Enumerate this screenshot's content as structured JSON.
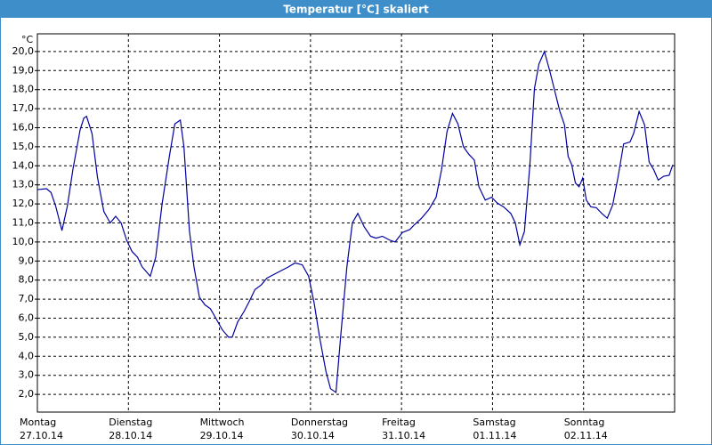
{
  "chart_data": {
    "type": "line",
    "title": "Temperatur [°C] skaliert",
    "y_label": "°C",
    "color": "#0000a0",
    "grid": true,
    "xlim": [
      0,
      7
    ],
    "xticks": [
      {
        "value": 0,
        "label": [
          "Montag",
          "27.10.14"
        ]
      },
      {
        "value": 1,
        "label": [
          "Dienstag",
          "28.10.14"
        ]
      },
      {
        "value": 2,
        "label": [
          "Mittwoch",
          "29.10.14"
        ]
      },
      {
        "value": 3,
        "label": [
          "Donnerstag",
          "30.10.14"
        ]
      },
      {
        "value": 4,
        "label": [
          "Freitag",
          "31.10.14"
        ]
      },
      {
        "value": 5,
        "label": [
          "Samstag",
          "01.11.14"
        ]
      },
      {
        "value": 6,
        "label": [
          "Sonntag",
          "02.11.14"
        ]
      }
    ],
    "ylim": [
      1.07,
      20.93
    ],
    "yticks": [
      {
        "value": 2,
        "label": "2,0"
      },
      {
        "value": 3,
        "label": "3,0"
      },
      {
        "value": 4,
        "label": "4,0"
      },
      {
        "value": 5,
        "label": "5,0"
      },
      {
        "value": 6,
        "label": "6,0"
      },
      {
        "value": 7,
        "label": "7,0"
      },
      {
        "value": 8,
        "label": "8,0"
      },
      {
        "value": 9,
        "label": "9,0"
      },
      {
        "value": 10,
        "label": "10,0"
      },
      {
        "value": 11,
        "label": "11,0"
      },
      {
        "value": 12,
        "label": "12,0"
      },
      {
        "value": 13,
        "label": "13,0"
      },
      {
        "value": 14,
        "label": "14,0"
      },
      {
        "value": 15,
        "label": "15,0"
      },
      {
        "value": 16,
        "label": "16,0"
      },
      {
        "value": 17,
        "label": "17,0"
      },
      {
        "value": 18,
        "label": "18,0"
      },
      {
        "value": 19,
        "label": "19,0"
      },
      {
        "value": 20,
        "label": "20,0"
      }
    ],
    "x": [
      0,
      0.1,
      0.15,
      0.2,
      0.27,
      0.33,
      0.39,
      0.47,
      0.51,
      0.54,
      0.6,
      0.66,
      0.73,
      0.8,
      0.86,
      0.92,
      0.98,
      1.04,
      1.1,
      1.15,
      1.24,
      1.3,
      1.37,
      1.45,
      1.51,
      1.57,
      1.61,
      1.67,
      1.72,
      1.78,
      1.84,
      1.9,
      1.96,
      2.03,
      2.1,
      2.14,
      2.2,
      2.27,
      2.33,
      2.39,
      2.46,
      2.52,
      2.6,
      2.68,
      2.76,
      2.83,
      2.91,
      2.98,
      3.04,
      3.1,
      3.17,
      3.22,
      3.28,
      3.33,
      3.4,
      3.46,
      3.52,
      3.59,
      3.66,
      3.72,
      3.79,
      3.87,
      3.93,
      4.01,
      4.09,
      4.14,
      4.22,
      4.3,
      4.38,
      4.44,
      4.5,
      4.56,
      4.62,
      4.68,
      4.74,
      4.8,
      4.85,
      4.92,
      4.99,
      5.05,
      5.12,
      5.2,
      5.25,
      5.3,
      5.35,
      5.41,
      5.46,
      5.51,
      5.57,
      5.63,
      5.69,
      5.74,
      5.79,
      5.83,
      5.87,
      5.91,
      5.95,
      5.99,
      6.03,
      6.08,
      6.14,
      6.2,
      6.26,
      6.32,
      6.38,
      6.44,
      6.51,
      6.55,
      6.61,
      6.67,
      6.72,
      6.77,
      6.82,
      6.88,
      6.94,
      6.98
    ],
    "values": [
      12.75,
      12.8,
      12.6,
      11.9,
      10.6,
      11.9,
      13.8,
      15.9,
      16.5,
      16.6,
      15.7,
      13.4,
      11.6,
      11.0,
      11.35,
      11.0,
      10.1,
      9.5,
      9.2,
      8.7,
      8.2,
      9.2,
      12.0,
      14.5,
      16.2,
      16.4,
      15.0,
      10.6,
      8.7,
      7.1,
      6.7,
      6.5,
      6.0,
      5.4,
      5.0,
      5.0,
      5.8,
      6.35,
      6.9,
      7.5,
      7.75,
      8.1,
      8.3,
      8.5,
      8.7,
      8.9,
      8.8,
      8.2,
      6.8,
      5.0,
      3.2,
      2.3,
      2.1,
      4.95,
      8.7,
      11.0,
      11.5,
      10.8,
      10.3,
      10.2,
      10.3,
      10.1,
      10.0,
      10.5,
      10.65,
      10.9,
      11.25,
      11.7,
      12.35,
      13.8,
      15.8,
      16.75,
      16.2,
      15.0,
      14.6,
      14.3,
      12.9,
      12.2,
      12.35,
      12.05,
      11.85,
      11.5,
      11.0,
      9.85,
      10.55,
      14.05,
      18.05,
      19.35,
      20.0,
      18.95,
      17.8,
      16.85,
      16.15,
      14.5,
      14.05,
      13.1,
      12.9,
      13.35,
      12.2,
      11.85,
      11.8,
      11.5,
      11.25,
      11.95,
      13.45,
      15.15,
      15.25,
      15.7,
      16.85,
      16.15,
      14.2,
      13.8,
      13.25,
      13.45,
      13.5,
      14.05
    ]
  }
}
